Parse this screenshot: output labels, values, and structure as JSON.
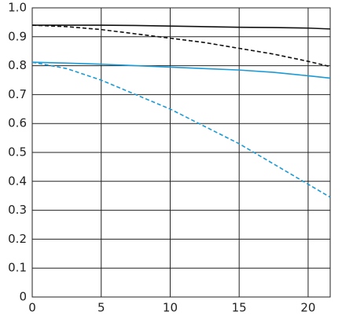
{
  "chart_data": {
    "type": "line",
    "x": [
      0,
      2.5,
      5,
      7.5,
      10,
      12.5,
      15,
      17.5,
      20,
      21.6
    ],
    "series": [
      {
        "color": "#111111",
        "style": "solid",
        "values": [
          0.94,
          0.94,
          0.94,
          0.939,
          0.937,
          0.935,
          0.933,
          0.932,
          0.93,
          0.927
        ]
      },
      {
        "color": "#111111",
        "style": "dashed",
        "values": [
          0.94,
          0.935,
          0.925,
          0.91,
          0.895,
          0.88,
          0.86,
          0.84,
          0.815,
          0.797
        ]
      },
      {
        "color": "#1a9ad6",
        "style": "solid",
        "values": [
          0.812,
          0.809,
          0.805,
          0.8,
          0.795,
          0.79,
          0.785,
          0.777,
          0.765,
          0.757
        ]
      },
      {
        "color": "#1a9ad6",
        "style": "dashed",
        "values": [
          0.812,
          0.79,
          0.75,
          0.7,
          0.65,
          0.59,
          0.53,
          0.46,
          0.39,
          0.345
        ]
      }
    ],
    "xlim": [
      0,
      21.6
    ],
    "xticks": [
      0,
      5,
      10,
      15,
      20
    ],
    "ylim": [
      0,
      1
    ],
    "yticks": [
      0,
      0.1,
      0.2,
      0.3,
      0.4,
      0.5,
      0.6,
      0.7,
      0.8,
      0.9,
      {
        "value": 1,
        "label": "1.0"
      }
    ],
    "grid": true
  }
}
